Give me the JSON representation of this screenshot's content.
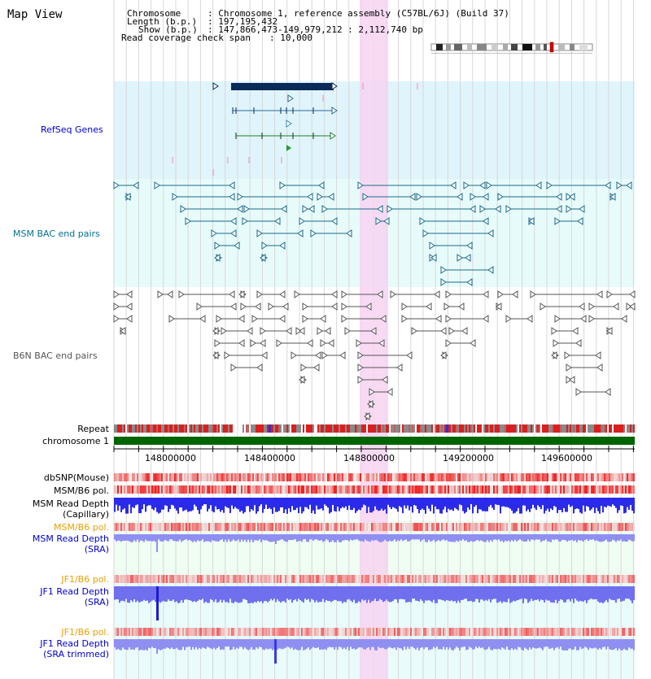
{
  "title": "Map View",
  "header": {
    "chromosome_key": "Chromosome",
    "chromosome_val": ": Chromosome 1, reference assembly (C57BL/6J) (Build 37)",
    "length_key": "Length (b.p.)",
    "length_val": ": 197,195,432",
    "show_key": "Show (b.p.)",
    "show_val": ": 147,866,473-149,979,212 : 2,112,740 bp",
    "coverage_key": "Read coverage check span",
    "coverage_val": ": 10,000"
  },
  "tracks": {
    "refseq": "RefSeq Genes",
    "msm_bac": "MSM BAC end pairs",
    "b6n_bac": "B6N BAC end pairs",
    "repeat": "Repeat",
    "chromosome": "chromosome 1",
    "dbsnp": "dbSNP(Mouse)",
    "msm_b6_pol": "MSM/B6 pol.",
    "msm_depth_cap_1": "MSM Read Depth",
    "msm_depth_cap_2": "(Capillary)",
    "msm_b6_pol_sra": "MSM/B6 pol.",
    "msm_depth_sra_1": "MSM Read Depth",
    "msm_depth_sra_2": "(SRA)",
    "jf1_b6_pol": "JF1/B6 pol.",
    "jf1_depth_1": "JF1 Read Depth",
    "jf1_depth_2": "(SRA)",
    "jf1_b6_pol_trim": "JF1/B6 pol.",
    "jf1_depth_trim_1": "JF1 Read Depth",
    "jf1_depth_trim_2": "(SRA trimmed)"
  },
  "axis": {
    "ticks": [
      "148000000",
      "148400000",
      "148800000",
      "149200000",
      "149600000"
    ]
  },
  "colors": {
    "refseq_bg": "#dff4fb",
    "msm_bg": "#e7fbfb",
    "highlight": "#f7d4f1",
    "chromosome_bar": "#006400",
    "depth_blue": "#2a2ae8",
    "depth_light": "#8f8ff2",
    "pol_red": "#e83030",
    "label_blue": "#0000cc",
    "label_orange": "#e8a000",
    "msm_label": "#007090"
  }
}
